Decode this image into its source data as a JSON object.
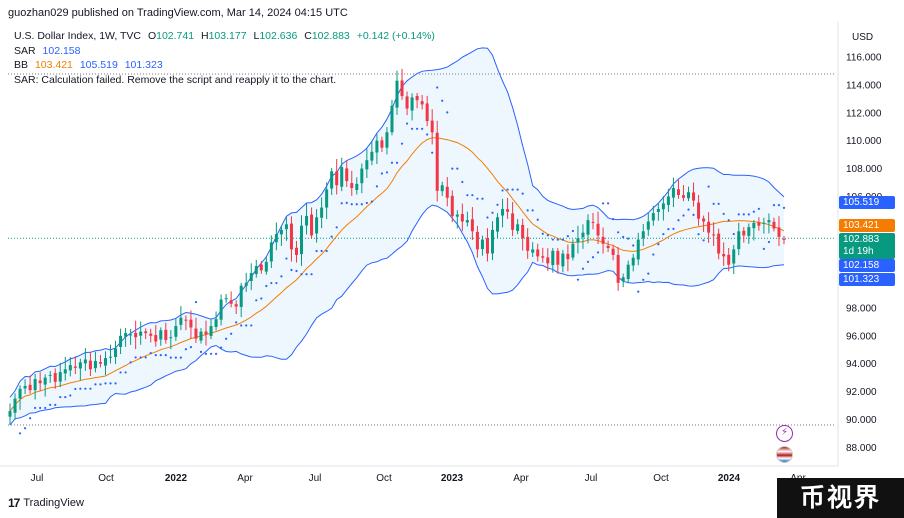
{
  "header": {
    "caption": "guozhan029 published on TradingView.com, Mar 14, 2024 04:15 UTC"
  },
  "legend": {
    "symbol": "U.S. Dollar Index, 1W, TVC",
    "open_label": "O",
    "open": "102.741",
    "high_label": "H",
    "high": "103.177",
    "low_label": "L",
    "low": "102.636",
    "close_label": "C",
    "close": "102.883",
    "change": "+0.142 (+0.14%)",
    "sar_label": "SAR",
    "sar_value": "102.158",
    "bb_label": "BB",
    "bb_basis": "103.421",
    "bb_upper": "105.519",
    "bb_lower": "101.323",
    "error": "SAR: Calculation failed. Remove the script and reapply it to the chart."
  },
  "axis": {
    "currency": "USD",
    "y_ticks": [
      "116.000",
      "114.000",
      "112.000",
      "110.000",
      "108.000",
      "106.000",
      "98.000",
      "96.000",
      "94.000",
      "92.000",
      "90.000",
      "88.000"
    ],
    "x_ticks": [
      "Jul",
      "Oct",
      "2022",
      "Apr",
      "Jul",
      "Oct",
      "2023",
      "Apr",
      "Jul",
      "Oct",
      "2024",
      "Apr"
    ]
  },
  "price_labels": {
    "bb_upper": "105.519",
    "bb_basis": "103.421",
    "last": "102.883",
    "countdown": "1d 19h",
    "sar": "102.158",
    "bb_lower": "101.323"
  },
  "footer": {
    "brand": "TradingView",
    "watermark": "币视界"
  },
  "colors": {
    "up": "#089981",
    "down": "#f23645",
    "band": "#2962ff",
    "basis": "#f57c00",
    "sar": "#2962ff",
    "band_fill": "#e3f2fd"
  },
  "chart_data": {
    "type": "candlestick",
    "symbol": "U.S. Dollar Index",
    "interval": "1W",
    "ylim": [
      87,
      117
    ],
    "yscale_note": "right axis",
    "x_labels": [
      "Jul",
      "Oct",
      "2022",
      "Apr",
      "Jul",
      "Oct",
      "2023",
      "Apr",
      "Jul",
      "Oct",
      "2024",
      "Apr"
    ],
    "weekly_close": [
      90.6,
      91.5,
      92.2,
      92.4,
      92.1,
      92.9,
      92.6,
      93.0,
      93.2,
      92.7,
      93.4,
      93.6,
      93.9,
      93.7,
      94.1,
      94.3,
      93.6,
      94.2,
      94.0,
      94.4,
      94.5,
      95.1,
      96.0,
      96.2,
      96.1,
      95.9,
      96.3,
      96.2,
      96.0,
      95.6,
      96.4,
      95.7,
      95.9,
      96.7,
      97.3,
      97.1,
      96.6,
      95.8,
      96.3,
      96.1,
      96.7,
      97.2,
      98.6,
      98.7,
      98.3,
      98.1,
      99.6,
      99.8,
      100.5,
      101.0,
      100.7,
      101.3,
      102.7,
      103.3,
      103.6,
      104.0,
      102.2,
      101.8,
      103.9,
      104.6,
      103.2,
      104.5,
      105.2,
      106.5,
      107.8,
      106.8,
      108.1,
      107.1,
      106.6,
      106.9,
      108.0,
      108.6,
      109.2,
      110.0,
      109.5,
      110.6,
      112.5,
      114.3,
      113.2,
      112.3,
      113.1,
      112.9,
      112.6,
      111.4,
      110.6,
      106.4,
      106.8,
      105.9,
      104.6,
      104.7,
      104.2,
      104.3,
      103.5,
      102.2,
      102.9,
      101.9,
      103.6,
      104.5,
      105.1,
      104.9,
      103.6,
      104.0,
      103.0,
      102.1,
      102.2,
      101.7,
      101.6,
      101.2,
      102.1,
      101.1,
      101.9,
      101.5,
      102.6,
      103.0,
      103.4,
      104.3,
      104.1,
      103.2,
      102.6,
      102.3,
      101.8,
      99.8,
      100.2,
      101.1,
      101.6,
      102.9,
      103.5,
      104.2,
      104.8,
      105.1,
      105.5,
      106.0,
      106.6,
      106.1,
      105.9,
      106.3,
      105.7,
      104.4,
      104.2,
      103.4,
      103.2,
      101.9,
      101.7,
      101.1,
      102.2,
      103.5,
      103.2,
      103.8,
      104.1,
      103.9,
      104.1,
      104.3,
      103.7,
      103.1,
      102.9
    ],
    "series": [
      {
        "name": "SAR",
        "last": 102.158
      },
      {
        "name": "BB basis",
        "last": 103.421
      },
      {
        "name": "BB upper",
        "last": 105.519
      },
      {
        "name": "BB lower",
        "last": 101.323
      }
    ],
    "reference_lines": [
      114.78,
      103.0,
      89.6
    ]
  }
}
